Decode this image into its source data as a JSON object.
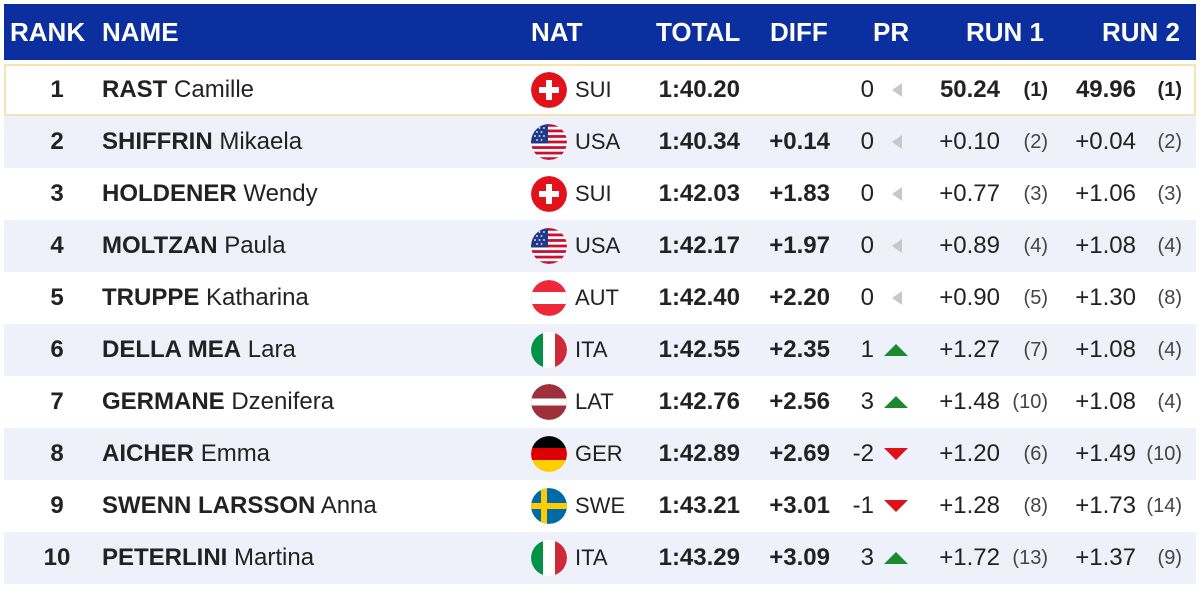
{
  "header": {
    "rank": "RANK",
    "name": "NAME",
    "nat": "NAT",
    "total": "TOTAL",
    "diff": "DIFF",
    "pr": "PR",
    "run1": "RUN 1",
    "run2": "RUN 2"
  },
  "colors": {
    "header_bg": "#0b2f9e",
    "row_alt_bg": "#eef0fa",
    "leader_border": "#f6e2b3",
    "trend_up": "#1a8a2e",
    "trend_down": "#e0101a",
    "trend_same": "#c8c8c8"
  },
  "rows": [
    {
      "rank": "1",
      "last": "RAST",
      "first": "Camille",
      "flag": "sui-flag-icon",
      "nat": "SUI",
      "total": "1:40.20",
      "diff": "",
      "pr": "0",
      "trend": "same",
      "run1_time": "50.24",
      "run1_rank": "(1)",
      "run2_time": "49.96",
      "run2_rank": "(1)"
    },
    {
      "rank": "2",
      "last": "SHIFFRIN",
      "first": "Mikaela",
      "flag": "usa-flag-icon",
      "nat": "USA",
      "total": "1:40.34",
      "diff": "+0.14",
      "pr": "0",
      "trend": "same",
      "run1_time": "+0.10",
      "run1_rank": "(2)",
      "run2_time": "+0.04",
      "run2_rank": "(2)"
    },
    {
      "rank": "3",
      "last": "HOLDENER",
      "first": "Wendy",
      "flag": "sui-flag-icon",
      "nat": "SUI",
      "total": "1:42.03",
      "diff": "+1.83",
      "pr": "0",
      "trend": "same",
      "run1_time": "+0.77",
      "run1_rank": "(3)",
      "run2_time": "+1.06",
      "run2_rank": "(3)"
    },
    {
      "rank": "4",
      "last": "MOLTZAN",
      "first": "Paula",
      "flag": "usa-flag-icon",
      "nat": "USA",
      "total": "1:42.17",
      "diff": "+1.97",
      "pr": "0",
      "trend": "same",
      "run1_time": "+0.89",
      "run1_rank": "(4)",
      "run2_time": "+1.08",
      "run2_rank": "(4)"
    },
    {
      "rank": "5",
      "last": "TRUPPE",
      "first": "Katharina",
      "flag": "aut-flag-icon",
      "nat": "AUT",
      "total": "1:42.40",
      "diff": "+2.20",
      "pr": "0",
      "trend": "same",
      "run1_time": "+0.90",
      "run1_rank": "(5)",
      "run2_time": "+1.30",
      "run2_rank": "(8)"
    },
    {
      "rank": "6",
      "last": "DELLA MEA",
      "first": "Lara",
      "flag": "ita-flag-icon",
      "nat": "ITA",
      "total": "1:42.55",
      "diff": "+2.35",
      "pr": "1",
      "trend": "up",
      "run1_time": "+1.27",
      "run1_rank": "(7)",
      "run2_time": "+1.08",
      "run2_rank": "(4)"
    },
    {
      "rank": "7",
      "last": "GERMANE",
      "first": "Dzenifera",
      "flag": "lat-flag-icon",
      "nat": "LAT",
      "total": "1:42.76",
      "diff": "+2.56",
      "pr": "3",
      "trend": "up",
      "run1_time": "+1.48",
      "run1_rank": "(10)",
      "run2_time": "+1.08",
      "run2_rank": "(4)"
    },
    {
      "rank": "8",
      "last": "AICHER",
      "first": "Emma",
      "flag": "ger-flag-icon",
      "nat": "GER",
      "total": "1:42.89",
      "diff": "+2.69",
      "pr": "-2",
      "trend": "down",
      "run1_time": "+1.20",
      "run1_rank": "(6)",
      "run2_time": "+1.49",
      "run2_rank": "(10)"
    },
    {
      "rank": "9",
      "last": "SWENN LARSSON",
      "first": "Anna",
      "flag": "swe-flag-icon",
      "nat": "SWE",
      "total": "1:43.21",
      "diff": "+3.01",
      "pr": "-1",
      "trend": "down",
      "run1_time": "+1.28",
      "run1_rank": "(8)",
      "run2_time": "+1.73",
      "run2_rank": "(14)"
    },
    {
      "rank": "10",
      "last": "PETERLINI",
      "first": "Martina",
      "flag": "ita-flag-icon",
      "nat": "ITA",
      "total": "1:43.29",
      "diff": "+3.09",
      "pr": "3",
      "trend": "up",
      "run1_time": "+1.72",
      "run1_rank": "(13)",
      "run2_time": "+1.37",
      "run2_rank": "(9)"
    }
  ]
}
